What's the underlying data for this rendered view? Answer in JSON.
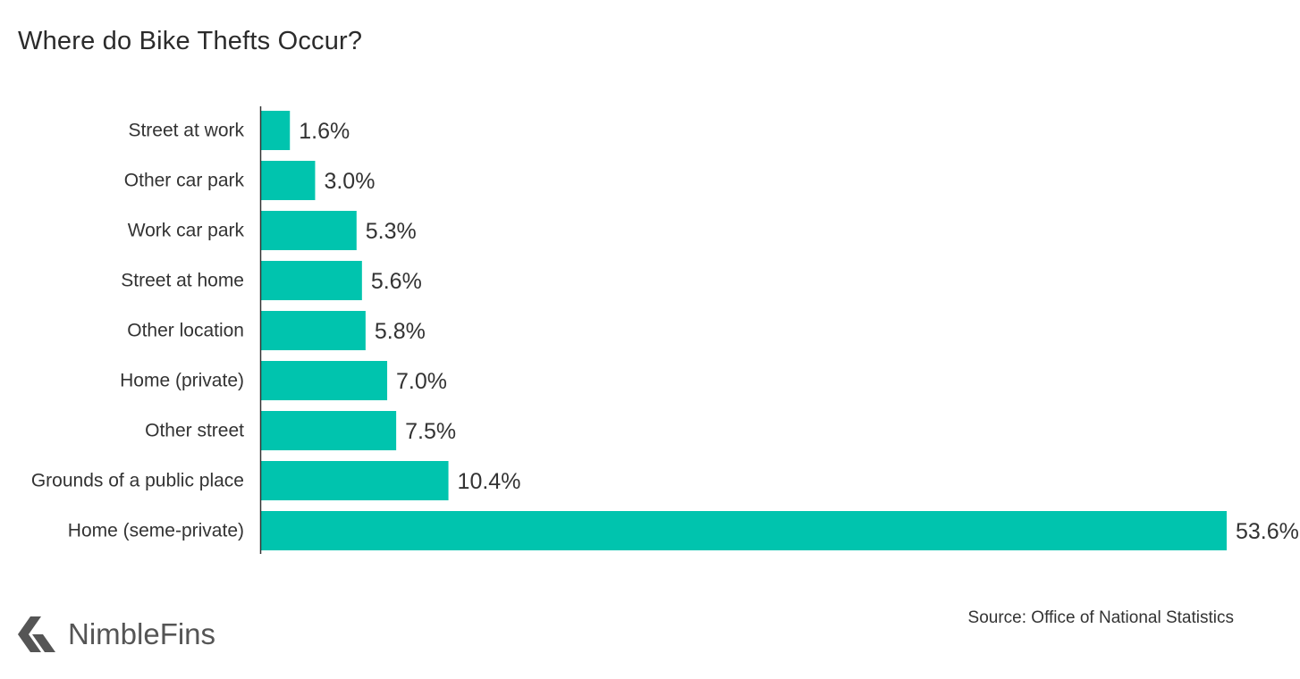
{
  "title": "Where do Bike Thefts Occur?",
  "source": "Source: Office of National Statistics",
  "brand": {
    "name": "NimbleFins",
    "logo_icon": "arrow-chevron-logo-icon",
    "logo_color": "#555555"
  },
  "colors": {
    "bar": "#00c4ae",
    "axis": "#333333",
    "text": "#333333"
  },
  "chart_data": {
    "type": "bar",
    "orientation": "horizontal",
    "categories": [
      "Street at work",
      "Other car park",
      "Work car park",
      "Street at home",
      "Other location",
      "Home (private)",
      "Other street",
      "Grounds of a public place",
      "Home (seme-private)"
    ],
    "values": [
      1.6,
      3.0,
      5.3,
      5.6,
      5.8,
      7.0,
      7.5,
      10.4,
      53.6
    ],
    "value_labels": [
      "1.6%",
      "3.0%",
      "5.3%",
      "5.6%",
      "5.8%",
      "7.0%",
      "7.5%",
      "10.4%",
      "53.6%"
    ],
    "title": "Where do Bike Thefts Occur?",
    "xlabel": "",
    "ylabel": "",
    "xlim": [
      0,
      53.6
    ],
    "grid": false,
    "legend": "none"
  }
}
